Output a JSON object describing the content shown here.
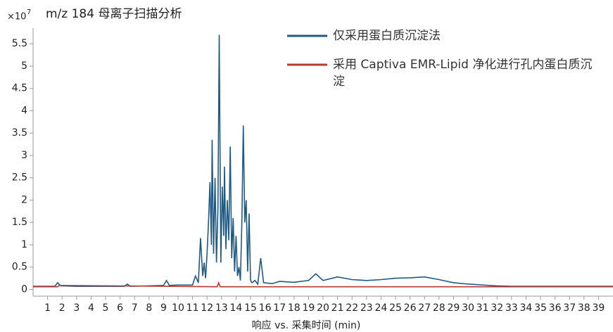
{
  "chart_data": {
    "type": "line",
    "title": "m/z 184 母离子扫描分析",
    "y_multiplier": "×10",
    "y_exponent": "7",
    "xlabel": "响应 vs. 采集时间 (min)",
    "xlim": [
      0,
      40
    ],
    "xticks": [
      1,
      2,
      3,
      4,
      5,
      6,
      7,
      8,
      9,
      10,
      11,
      12,
      13,
      14,
      15,
      16,
      17,
      18,
      19,
      20,
      21,
      22,
      23,
      24,
      25,
      26,
      27,
      28,
      29,
      30,
      31,
      32,
      33,
      34,
      35,
      36,
      37,
      38,
      39
    ],
    "ylim": [
      -0.15,
      5.85
    ],
    "yticks": [
      0,
      0.5,
      1,
      1.5,
      2,
      2.5,
      3,
      3.5,
      4,
      4.5,
      5,
      5.5
    ],
    "legend": "top-right",
    "series": [
      {
        "name": "仅采用蛋白质沉淀法",
        "color": "#1f5a85",
        "x": [
          0,
          1.5,
          1.7,
          1.9,
          3,
          5,
          6.3,
          6.5,
          6.7,
          8,
          9,
          9.2,
          9.4,
          10,
          11,
          11.2,
          11.4,
          11.55,
          11.7,
          11.8,
          11.9,
          12.0,
          12.1,
          12.2,
          12.3,
          12.35,
          12.45,
          12.55,
          12.65,
          12.75,
          12.84,
          12.95,
          13.05,
          13.15,
          13.2,
          13.3,
          13.4,
          13.5,
          13.6,
          13.7,
          13.8,
          13.9,
          14.0,
          14.1,
          14.2,
          14.3,
          14.4,
          14.5,
          14.6,
          14.7,
          14.8,
          14.9,
          15.0,
          15.1,
          15.3,
          15.5,
          15.7,
          15.9,
          16.5,
          17,
          18,
          19,
          19.5,
          20,
          21,
          22,
          23,
          24,
          25,
          26,
          27,
          28,
          29,
          30,
          31,
          32,
          33,
          34,
          40
        ],
        "values": [
          0.07,
          0.07,
          0.15,
          0.08,
          0.07,
          0.07,
          0.07,
          0.12,
          0.07,
          0.08,
          0.09,
          0.2,
          0.09,
          0.1,
          0.1,
          0.3,
          0.15,
          1.15,
          0.3,
          0.6,
          0.25,
          0.8,
          1.5,
          2.4,
          1.0,
          3.35,
          0.8,
          2.5,
          0.6,
          1.8,
          5.7,
          0.6,
          2.3,
          1.2,
          2.75,
          0.9,
          2.0,
          1.1,
          3.2,
          0.7,
          1.6,
          0.4,
          1.2,
          0.3,
          0.5,
          0.2,
          1.5,
          3.67,
          1.5,
          2.0,
          0.4,
          1.7,
          0.2,
          0.15,
          0.2,
          0.12,
          0.7,
          0.15,
          0.13,
          0.18,
          0.16,
          0.2,
          0.35,
          0.2,
          0.28,
          0.22,
          0.2,
          0.22,
          0.25,
          0.26,
          0.28,
          0.22,
          0.15,
          0.12,
          0.1,
          0.08,
          0.07,
          0.07,
          0.07
        ]
      },
      {
        "name": "采用 Captiva EMR-Lipid 净化进行孔内蛋白质沉淀",
        "color": "#b5392f",
        "x": [
          0,
          1.7,
          1.8,
          12.7,
          12.8,
          12.9,
          40
        ],
        "values": [
          0.06,
          0.06,
          0.09,
          0.06,
          0.15,
          0.06,
          0.06
        ]
      }
    ]
  }
}
